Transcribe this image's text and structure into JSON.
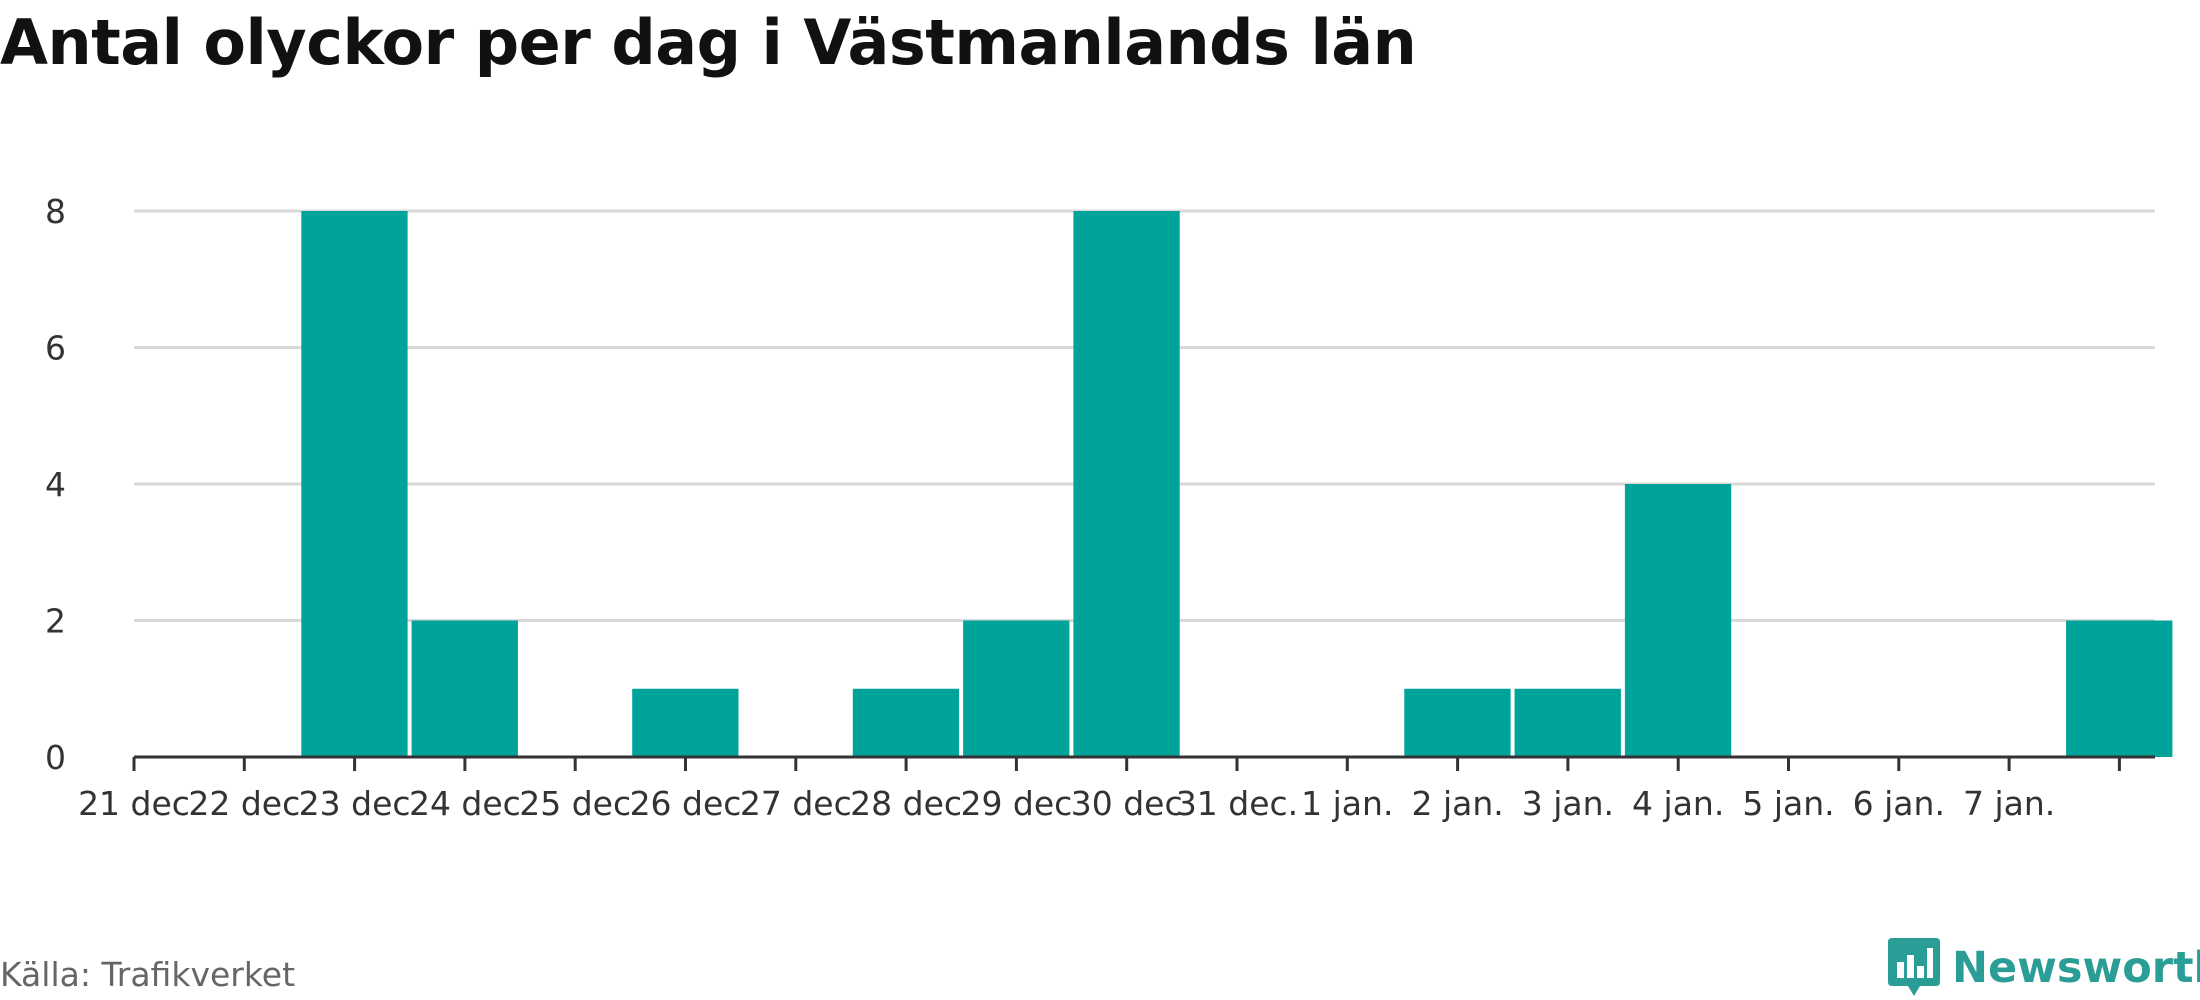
{
  "title": "Antal olyckor per dag i Västmanlands län",
  "source": "Källa: Trafikverket",
  "brand": {
    "name": "Newsworthy",
    "icon": "bar-chart-speech-bubble-icon"
  },
  "colors": {
    "bar": "#00a39a",
    "brand": "#2a9d96",
    "grid": "#d9d9d9",
    "axis": "#333333"
  },
  "chart_data": {
    "type": "bar",
    "title": "Antal olyckor per dag i Västmanlands län",
    "categories": [
      "21 dec.",
      "22 dec.",
      "23 dec.",
      "24 dec.",
      "25 dec.",
      "26 dec.",
      "27 dec.",
      "28 dec.",
      "29 dec.",
      "30 dec.",
      "31 dec.",
      "1 jan.",
      "2 jan.",
      "3 jan.",
      "4 jan.",
      "5 jan.",
      "6 jan.",
      "7 jan."
    ],
    "tick_labels": [
      "21 dec",
      "22 dec",
      "23 dec",
      "24 dec",
      "25 dec",
      "26 dec",
      "27 dec",
      "28 dec",
      "29 dec",
      "30 dec",
      "31 dec.",
      "1 jan.",
      "2 jan.",
      "3 jan.",
      "4 jan.",
      "5 jan.",
      "6 jan.",
      "7 jan."
    ],
    "values": [
      0,
      8,
      2,
      0,
      1,
      0,
      1,
      2,
      8,
      0,
      0,
      1,
      1,
      4,
      0,
      0,
      0,
      2
    ],
    "yticks": [
      0,
      2,
      4,
      6,
      8
    ],
    "ylim": [
      0,
      8
    ],
    "xlabel": "",
    "ylabel": "",
    "grid": true,
    "legend": "none"
  }
}
